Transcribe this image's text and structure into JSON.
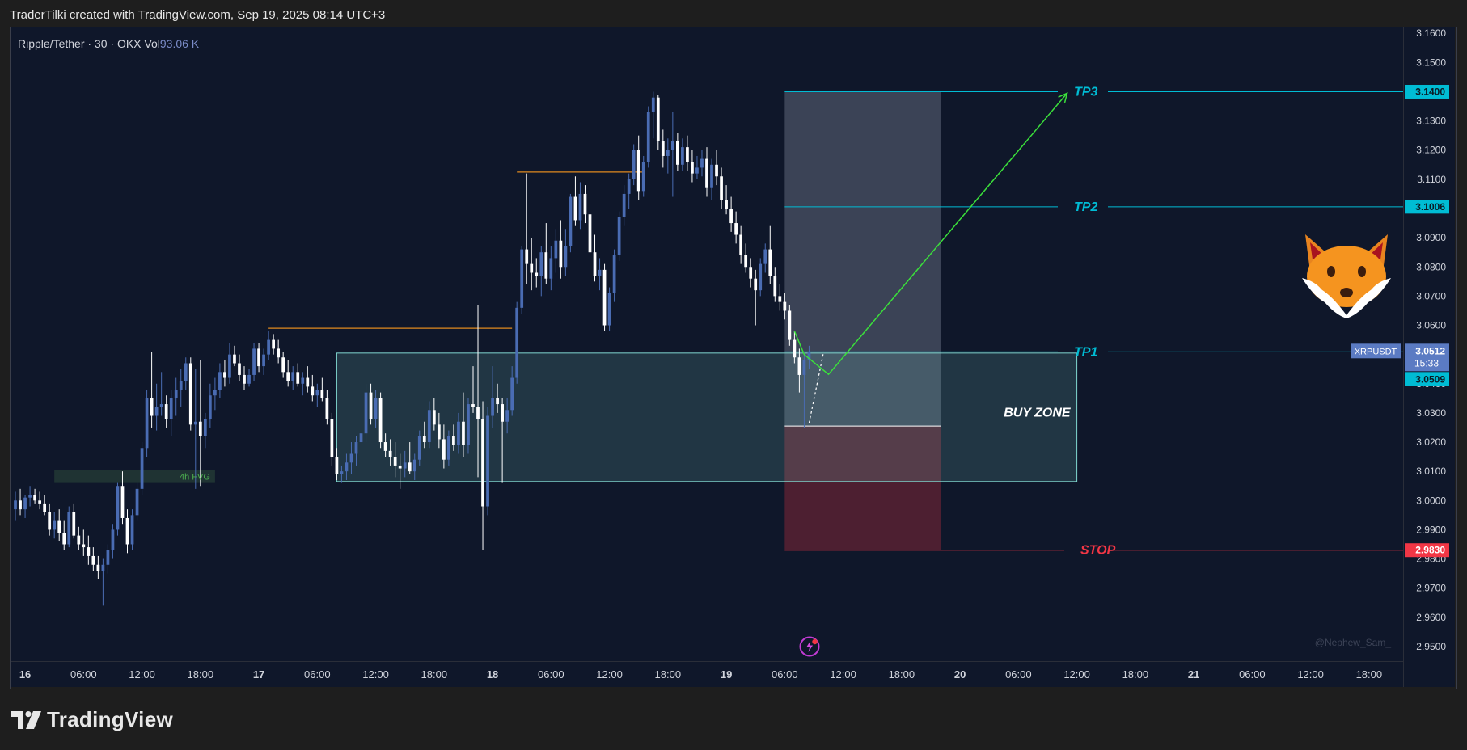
{
  "header": {
    "title": "TraderTilki created with TradingView.com, Sep 19, 2025 08:14 UTC+3"
  },
  "legend": {
    "symbol": "Ripple/Tether · 30 · OKX",
    "vol_label": "Vol",
    "vol_value": "93.06 K"
  },
  "brand": {
    "name": "TradingView"
  },
  "watermark": "@Nephew_Sam_",
  "colors": {
    "background": "#0f172a",
    "candle_up": "#4a6cb3",
    "candle_down": "#ffffff",
    "tp": "#00bcd4",
    "stop": "#f23645",
    "path": "#3be03b",
    "buy_zone": "#80d8d0",
    "level": "#e08a1e"
  },
  "icons": [
    "tradingview-logo-icon",
    "fox-mascot-icon",
    "lightning-badge-icon"
  ],
  "chart_data": {
    "type": "candlestick",
    "symbol": "XRPUSDT",
    "y_ticks": [
      "3.1600",
      "3.1500",
      "3.1400",
      "3.1300",
      "3.1200",
      "3.1100",
      "3.1000",
      "3.0900",
      "3.0800",
      "3.0700",
      "3.0600",
      "3.0500",
      "3.0400",
      "3.0300",
      "3.0200",
      "3.0100",
      "3.0000",
      "2.9900",
      "2.9800",
      "2.9700",
      "2.9600",
      "2.9500"
    ],
    "ylim": [
      2.945,
      3.162
    ],
    "x_ticks": [
      "16",
      "06:00",
      "12:00",
      "18:00",
      "17",
      "06:00",
      "12:00",
      "18:00",
      "18",
      "06:00",
      "12:00",
      "18:00",
      "19",
      "06:00",
      "12:00",
      "18:00",
      "20",
      "06:00",
      "12:00",
      "18:00",
      "21",
      "06:00",
      "12:00",
      "18:00"
    ],
    "x_tick_hours": [
      0,
      6,
      12,
      18,
      24,
      30,
      36,
      42,
      48,
      54,
      60,
      66,
      72,
      78,
      84,
      90,
      96,
      102,
      108,
      114,
      120,
      126,
      132,
      138
    ],
    "x_range_hours": [
      -1.5,
      141.5
    ],
    "price_labels": {
      "tp3": "3.1400",
      "tp2": "3.1006",
      "current_symbol": "XRPUSDT",
      "current_price": "3.0512",
      "countdown": "15:33",
      "tp1": "3.0509",
      "stop": "2.9830"
    },
    "levels": {
      "tp3": {
        "label": "TP3",
        "price": 3.14
      },
      "tp2": {
        "label": "TP2",
        "price": 3.1006
      },
      "tp1": {
        "label": "TP1",
        "price": 3.0509
      },
      "stop": {
        "label": "STOP",
        "price": 2.983
      }
    },
    "buy_zone": {
      "label": "BUY ZONE",
      "top": 3.0505,
      "bottom": 3.0065,
      "start_hour": 32.0,
      "end_hour": 108.0
    },
    "fvg": {
      "label": "4h FVG",
      "top": 3.0105,
      "bottom": 3.006,
      "start_hour": 3.0,
      "end_hour": 19.5
    },
    "position": {
      "start_hour": 78.0,
      "end_hour": 94.0,
      "entry": 3.0255,
      "target": 3.14,
      "stop": 2.983
    },
    "resistance_lines": [
      {
        "price": 3.059,
        "start_hour": 25.0,
        "end_hour": 50.0
      },
      {
        "price": 3.1125,
        "start_hour": 50.5,
        "end_hour": 63.5
      }
    ],
    "projected_path": [
      {
        "hour": 79.0,
        "price": 3.058
      },
      {
        "hour": 80.0,
        "price": 3.05
      },
      {
        "hour": 82.5,
        "price": 3.0432
      },
      {
        "hour": 107.0,
        "price": 3.1395
      }
    ],
    "forecast_dash": [
      {
        "hour": 80.5,
        "price": 3.0265
      },
      {
        "hour": 82.0,
        "price": 3.051
      }
    ],
    "candles": [
      [
        -1.0,
        2.997,
        3.003,
        2.993,
        3.0
      ],
      [
        -0.5,
        3.0,
        3.004,
        2.995,
        2.997
      ],
      [
        0.0,
        2.997,
        3.002,
        2.994,
        3.001
      ],
      [
        0.5,
        3.001,
        3.005,
        2.998,
        3.002
      ],
      [
        1.0,
        3.002,
        3.004,
        2.999,
        3.0
      ],
      [
        1.5,
        3.0,
        3.003,
        2.997,
        2.999
      ],
      [
        2.0,
        2.999,
        3.002,
        2.995,
        2.996
      ],
      [
        2.5,
        2.996,
        2.999,
        2.988,
        2.99
      ],
      [
        3.0,
        2.99,
        2.996,
        2.987,
        2.993
      ],
      [
        3.5,
        2.993,
        2.997,
        2.986,
        2.989
      ],
      [
        4.0,
        2.989,
        2.993,
        2.983,
        2.985
      ],
      [
        4.5,
        2.985,
        2.998,
        2.984,
        2.996
      ],
      [
        5.0,
        2.996,
        2.999,
        2.987,
        2.988
      ],
      [
        5.5,
        2.988,
        2.991,
        2.983,
        2.985
      ],
      [
        6.0,
        2.985,
        2.99,
        2.981,
        2.984
      ],
      [
        6.5,
        2.984,
        2.988,
        2.978,
        2.981
      ],
      [
        7.0,
        2.981,
        2.984,
        2.976,
        2.978
      ],
      [
        7.5,
        2.978,
        2.981,
        2.973,
        2.976
      ],
      [
        8.0,
        2.976,
        2.98,
        2.964,
        2.978
      ],
      [
        8.5,
        2.978,
        2.985,
        2.975,
        2.983
      ],
      [
        9.0,
        2.983,
        2.992,
        2.98,
        2.99
      ],
      [
        9.5,
        2.99,
        3.006,
        2.988,
        3.005
      ],
      [
        10.0,
        3.005,
        3.01,
        2.992,
        2.994
      ],
      [
        10.5,
        2.994,
        2.997,
        2.982,
        2.985
      ],
      [
        11.0,
        2.985,
        2.997,
        2.983,
        2.995
      ],
      [
        11.5,
        2.995,
        3.006,
        2.993,
        3.004
      ],
      [
        12.0,
        3.004,
        3.02,
        3.002,
        3.018
      ],
      [
        12.5,
        3.018,
        3.038,
        3.015,
        3.035
      ],
      [
        13.0,
        3.035,
        3.051,
        3.025,
        3.029
      ],
      [
        13.5,
        3.029,
        3.04,
        3.024,
        3.032
      ],
      [
        14.0,
        3.032,
        3.044,
        3.029,
        3.033
      ],
      [
        14.5,
        3.033,
        3.036,
        3.025,
        3.028
      ],
      [
        15.0,
        3.028,
        3.038,
        3.022,
        3.035
      ],
      [
        15.5,
        3.035,
        3.042,
        3.029,
        3.038
      ],
      [
        16.0,
        3.038,
        3.045,
        3.032,
        3.041
      ],
      [
        16.5,
        3.041,
        3.049,
        3.038,
        3.047
      ],
      [
        17.0,
        3.047,
        3.049,
        3.024,
        3.026
      ],
      [
        17.5,
        3.026,
        3.045,
        3.004,
        3.027
      ],
      [
        18.0,
        3.027,
        3.048,
        3.005,
        3.022
      ],
      [
        18.5,
        3.022,
        3.03,
        3.018,
        3.028
      ],
      [
        19.0,
        3.028,
        3.04,
        3.025,
        3.036
      ],
      [
        19.5,
        3.036,
        3.042,
        3.031,
        3.038
      ],
      [
        20.0,
        3.038,
        3.047,
        3.035,
        3.044
      ],
      [
        20.5,
        3.044,
        3.048,
        3.039,
        3.042
      ],
      [
        21.0,
        3.042,
        3.054,
        3.04,
        3.05
      ],
      [
        21.5,
        3.05,
        3.053,
        3.046,
        3.047
      ],
      [
        22.0,
        3.047,
        3.05,
        3.041,
        3.043
      ],
      [
        22.5,
        3.043,
        3.046,
        3.038,
        3.04
      ],
      [
        23.0,
        3.04,
        3.045,
        3.039,
        3.043
      ],
      [
        23.5,
        3.043,
        3.054,
        3.041,
        3.052
      ],
      [
        24.0,
        3.052,
        3.054,
        3.044,
        3.046
      ],
      [
        24.5,
        3.046,
        3.052,
        3.043,
        3.05
      ],
      [
        25.0,
        3.05,
        3.058,
        3.048,
        3.055
      ],
      [
        25.5,
        3.055,
        3.057,
        3.05,
        3.052
      ],
      [
        26.0,
        3.052,
        3.055,
        3.047,
        3.049
      ],
      [
        26.5,
        3.049,
        3.051,
        3.042,
        3.044
      ],
      [
        27.0,
        3.044,
        3.048,
        3.039,
        3.041
      ],
      [
        27.5,
        3.041,
        3.046,
        3.038,
        3.044
      ],
      [
        28.0,
        3.044,
        3.047,
        3.039,
        3.04
      ],
      [
        28.5,
        3.04,
        3.044,
        3.036,
        3.042
      ],
      [
        29.0,
        3.042,
        3.046,
        3.037,
        3.039
      ],
      [
        29.5,
        3.039,
        3.043,
        3.034,
        3.036
      ],
      [
        30.0,
        3.036,
        3.04,
        3.032,
        3.038
      ],
      [
        30.5,
        3.038,
        3.042,
        3.034,
        3.035
      ],
      [
        31.0,
        3.035,
        3.038,
        3.026,
        3.028
      ],
      [
        31.5,
        3.028,
        3.03,
        3.012,
        3.015
      ],
      [
        32.0,
        3.015,
        3.018,
        3.007,
        3.009
      ],
      [
        32.5,
        3.009,
        3.012,
        3.006,
        3.01
      ],
      [
        33.0,
        3.01,
        3.016,
        3.007,
        3.013
      ],
      [
        33.5,
        3.013,
        3.02,
        3.009,
        3.016
      ],
      [
        34.0,
        3.016,
        3.022,
        3.012,
        3.02
      ],
      [
        34.5,
        3.02,
        3.026,
        3.016,
        3.023
      ],
      [
        35.0,
        3.023,
        3.04,
        3.02,
        3.037
      ],
      [
        35.5,
        3.037,
        3.04,
        3.026,
        3.028
      ],
      [
        36.0,
        3.028,
        3.038,
        3.025,
        3.035
      ],
      [
        36.5,
        3.035,
        3.037,
        3.018,
        3.02
      ],
      [
        37.0,
        3.02,
        3.023,
        3.015,
        3.017
      ],
      [
        37.5,
        3.017,
        3.021,
        3.012,
        3.015
      ],
      [
        38.0,
        3.015,
        3.02,
        3.008,
        3.012
      ],
      [
        38.5,
        3.012,
        3.016,
        3.004,
        3.011
      ],
      [
        39.0,
        3.011,
        3.017,
        3.008,
        3.013
      ],
      [
        39.5,
        3.013,
        3.02,
        3.009,
        3.01
      ],
      [
        40.0,
        3.01,
        3.016,
        3.007,
        3.014
      ],
      [
        40.5,
        3.014,
        3.024,
        3.012,
        3.022
      ],
      [
        41.0,
        3.022,
        3.027,
        3.018,
        3.02
      ],
      [
        41.5,
        3.02,
        3.034,
        3.018,
        3.031
      ],
      [
        42.0,
        3.031,
        3.035,
        3.024,
        3.026
      ],
      [
        42.5,
        3.026,
        3.03,
        3.018,
        3.021
      ],
      [
        43.0,
        3.021,
        3.026,
        3.011,
        3.014
      ],
      [
        43.5,
        3.014,
        3.024,
        3.012,
        3.022
      ],
      [
        44.0,
        3.022,
        3.026,
        3.017,
        3.019
      ],
      [
        44.5,
        3.019,
        3.03,
        3.016,
        3.027
      ],
      [
        45.0,
        3.027,
        3.037,
        3.015,
        3.019
      ],
      [
        45.5,
        3.019,
        3.035,
        3.016,
        3.033
      ],
      [
        46.0,
        3.033,
        3.046,
        3.03,
        3.032
      ],
      [
        46.5,
        3.032,
        3.067,
        3.008,
        3.028
      ],
      [
        47.0,
        3.028,
        3.034,
        2.983,
        2.998
      ],
      [
        47.5,
        2.998,
        3.032,
        2.995,
        3.029
      ],
      [
        48.0,
        3.029,
        3.046,
        3.025,
        3.035
      ],
      [
        48.5,
        3.035,
        3.04,
        3.03,
        3.033
      ],
      [
        49.0,
        3.033,
        3.035,
        3.006,
        3.027
      ],
      [
        49.5,
        3.027,
        3.035,
        3.023,
        3.031
      ],
      [
        50.0,
        3.031,
        3.046,
        3.029,
        3.042
      ],
      [
        50.5,
        3.042,
        3.068,
        3.04,
        3.066
      ],
      [
        51.0,
        3.066,
        3.087,
        3.064,
        3.086
      ],
      [
        51.5,
        3.086,
        3.112,
        3.074,
        3.081
      ],
      [
        52.0,
        3.081,
        3.09,
        3.072,
        3.078
      ],
      [
        52.5,
        3.078,
        3.083,
        3.073,
        3.077
      ],
      [
        53.0,
        3.077,
        3.087,
        3.07,
        3.085
      ],
      [
        53.5,
        3.085,
        3.095,
        3.074,
        3.076
      ],
      [
        54.0,
        3.076,
        3.087,
        3.072,
        3.083
      ],
      [
        54.5,
        3.083,
        3.093,
        3.078,
        3.089
      ],
      [
        55.0,
        3.089,
        3.096,
        3.076,
        3.08
      ],
      [
        55.5,
        3.08,
        3.093,
        3.077,
        3.087
      ],
      [
        56.0,
        3.087,
        3.105,
        3.085,
        3.104
      ],
      [
        56.5,
        3.104,
        3.111,
        3.094,
        3.096
      ],
      [
        57.0,
        3.096,
        3.109,
        3.093,
        3.105
      ],
      [
        57.5,
        3.105,
        3.108,
        3.095,
        3.098
      ],
      [
        58.0,
        3.098,
        3.102,
        3.082,
        3.085
      ],
      [
        58.5,
        3.085,
        3.091,
        3.075,
        3.077
      ],
      [
        59.0,
        3.077,
        3.083,
        3.072,
        3.079
      ],
      [
        59.5,
        3.079,
        3.081,
        3.058,
        3.06
      ],
      [
        60.0,
        3.06,
        3.073,
        3.058,
        3.071
      ],
      [
        60.5,
        3.071,
        3.086,
        3.068,
        3.084
      ],
      [
        61.0,
        3.084,
        3.099,
        3.082,
        3.097
      ],
      [
        61.5,
        3.097,
        3.108,
        3.094,
        3.105
      ],
      [
        62.0,
        3.105,
        3.112,
        3.1,
        3.11
      ],
      [
        62.5,
        3.11,
        3.122,
        3.108,
        3.12
      ],
      [
        63.0,
        3.12,
        3.125,
        3.103,
        3.106
      ],
      [
        63.5,
        3.106,
        3.118,
        3.104,
        3.116
      ],
      [
        64.0,
        3.116,
        3.135,
        3.114,
        3.133
      ],
      [
        64.5,
        3.133,
        3.14,
        3.124,
        3.138
      ],
      [
        65.0,
        3.138,
        3.139,
        3.12,
        3.123
      ],
      [
        65.5,
        3.123,
        3.127,
        3.114,
        3.118
      ],
      [
        66.0,
        3.118,
        3.124,
        3.112,
        3.12
      ],
      [
        66.5,
        3.12,
        3.133,
        3.104,
        3.123
      ],
      [
        67.0,
        3.123,
        3.126,
        3.113,
        3.115
      ],
      [
        67.5,
        3.115,
        3.124,
        3.113,
        3.121
      ],
      [
        68.0,
        3.121,
        3.125,
        3.113,
        3.116
      ],
      [
        68.5,
        3.116,
        3.12,
        3.109,
        3.112
      ],
      [
        69.0,
        3.112,
        3.118,
        3.11,
        3.114
      ],
      [
        69.5,
        3.114,
        3.12,
        3.111,
        3.117
      ],
      [
        70.0,
        3.117,
        3.121,
        3.104,
        3.107
      ],
      [
        70.5,
        3.107,
        3.117,
        3.103,
        3.115
      ],
      [
        71.0,
        3.115,
        3.12,
        3.108,
        3.111
      ],
      [
        71.5,
        3.111,
        3.114,
        3.1,
        3.103
      ],
      [
        72.0,
        3.103,
        3.108,
        3.098,
        3.1
      ],
      [
        72.5,
        3.1,
        3.104,
        3.092,
        3.095
      ],
      [
        73.0,
        3.095,
        3.099,
        3.088,
        3.091
      ],
      [
        73.5,
        3.091,
        3.094,
        3.081,
        3.084
      ],
      [
        74.0,
        3.084,
        3.088,
        3.078,
        3.08
      ],
      [
        74.5,
        3.08,
        3.083,
        3.073,
        3.076
      ],
      [
        75.0,
        3.076,
        3.079,
        3.06,
        3.072
      ],
      [
        75.5,
        3.072,
        3.083,
        3.07,
        3.081
      ],
      [
        76.0,
        3.081,
        3.088,
        3.078,
        3.086
      ],
      [
        76.5,
        3.086,
        3.094,
        3.074,
        3.077
      ],
      [
        77.0,
        3.077,
        3.08,
        3.068,
        3.07
      ],
      [
        77.5,
        3.07,
        3.074,
        3.065,
        3.068
      ],
      [
        78.0,
        3.068,
        3.071,
        3.062,
        3.065
      ],
      [
        78.5,
        3.065,
        3.067,
        3.053,
        3.055
      ],
      [
        79.0,
        3.055,
        3.058,
        3.047,
        3.049
      ],
      [
        79.5,
        3.049,
        3.052,
        3.037,
        3.043
      ],
      [
        80.0,
        3.043,
        3.051,
        3.025,
        3.048
      ],
      [
        80.5,
        3.048,
        3.053,
        3.045,
        3.051
      ]
    ]
  }
}
